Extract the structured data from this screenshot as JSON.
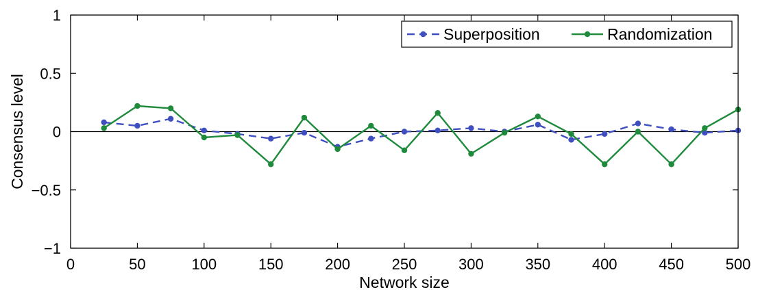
{
  "chart_data": {
    "type": "line",
    "title": "",
    "xlabel": "Network size",
    "ylabel": "Consensus level",
    "xlim": [
      0,
      500
    ],
    "ylim": [
      -1,
      1
    ],
    "xticks": [
      0,
      50,
      100,
      150,
      200,
      250,
      300,
      350,
      400,
      450,
      500
    ],
    "yticks": [
      -1,
      -0.5,
      0,
      0.5,
      1
    ],
    "ytick_labels": [
      "−1",
      "−0.5",
      "0",
      "0.5",
      "1"
    ],
    "grid": false,
    "zero_line": true,
    "legend_position": "top-right",
    "x": [
      25,
      50,
      75,
      100,
      125,
      150,
      175,
      200,
      225,
      250,
      275,
      300,
      325,
      350,
      375,
      400,
      425,
      450,
      475,
      500
    ],
    "series": [
      {
        "name": "Superposition",
        "style": "dashed",
        "color": "#3f4fc0",
        "values": [
          0.08,
          0.05,
          0.11,
          0.01,
          -0.02,
          -0.06,
          -0.01,
          -0.13,
          -0.06,
          0.0,
          0.01,
          0.03,
          0.0,
          0.06,
          -0.07,
          -0.02,
          0.07,
          0.02,
          -0.01,
          0.01
        ]
      },
      {
        "name": "Randomization",
        "style": "solid",
        "color": "#1f8a3c",
        "values": [
          0.03,
          0.22,
          0.2,
          -0.05,
          -0.03,
          -0.28,
          0.12,
          -0.15,
          0.05,
          -0.16,
          0.16,
          -0.19,
          -0.01,
          0.13,
          -0.02,
          -0.28,
          0.0,
          -0.28,
          0.03,
          0.19
        ]
      }
    ]
  }
}
